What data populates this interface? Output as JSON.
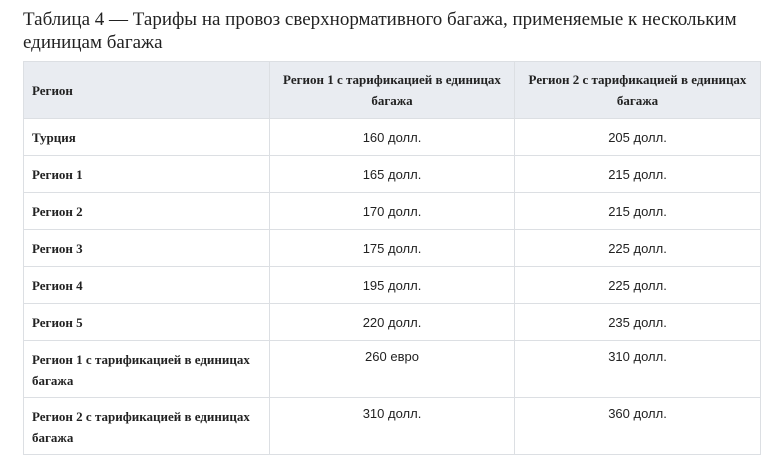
{
  "caption": "Таблица 4 — Тарифы на провоз сверхнормативного багажа, применяемые к нескольким единицам багажа",
  "headers": [
    "Регион",
    "Регион 1 с тарификацией в единицах багажа",
    "Регион 2 с тарификацией в единицах багажа"
  ],
  "rows": [
    {
      "region": "Турция",
      "r1": "160 долл.",
      "r2": "205 долл."
    },
    {
      "region": "Регион 1",
      "r1": "165 долл.",
      "r2": "215 долл."
    },
    {
      "region": "Регион 2",
      "r1": "170 долл.",
      "r2": "215 долл."
    },
    {
      "region": "Регион 3",
      "r1": "175 долл.",
      "r2": "225 долл."
    },
    {
      "region": "Регион 4",
      "r1": "195 долл.",
      "r2": "225 долл."
    },
    {
      "region": "Регион 5",
      "r1": "220 долл.",
      "r2": "235 долл."
    },
    {
      "region": "Регион 1 с тарификацией в единицах багажа",
      "r1": "260 евро",
      "r2": "310 долл."
    },
    {
      "region": "Регион 2 с тарификацией в единицах багажа",
      "r1": "310 долл.",
      "r2": "360 долл."
    }
  ]
}
